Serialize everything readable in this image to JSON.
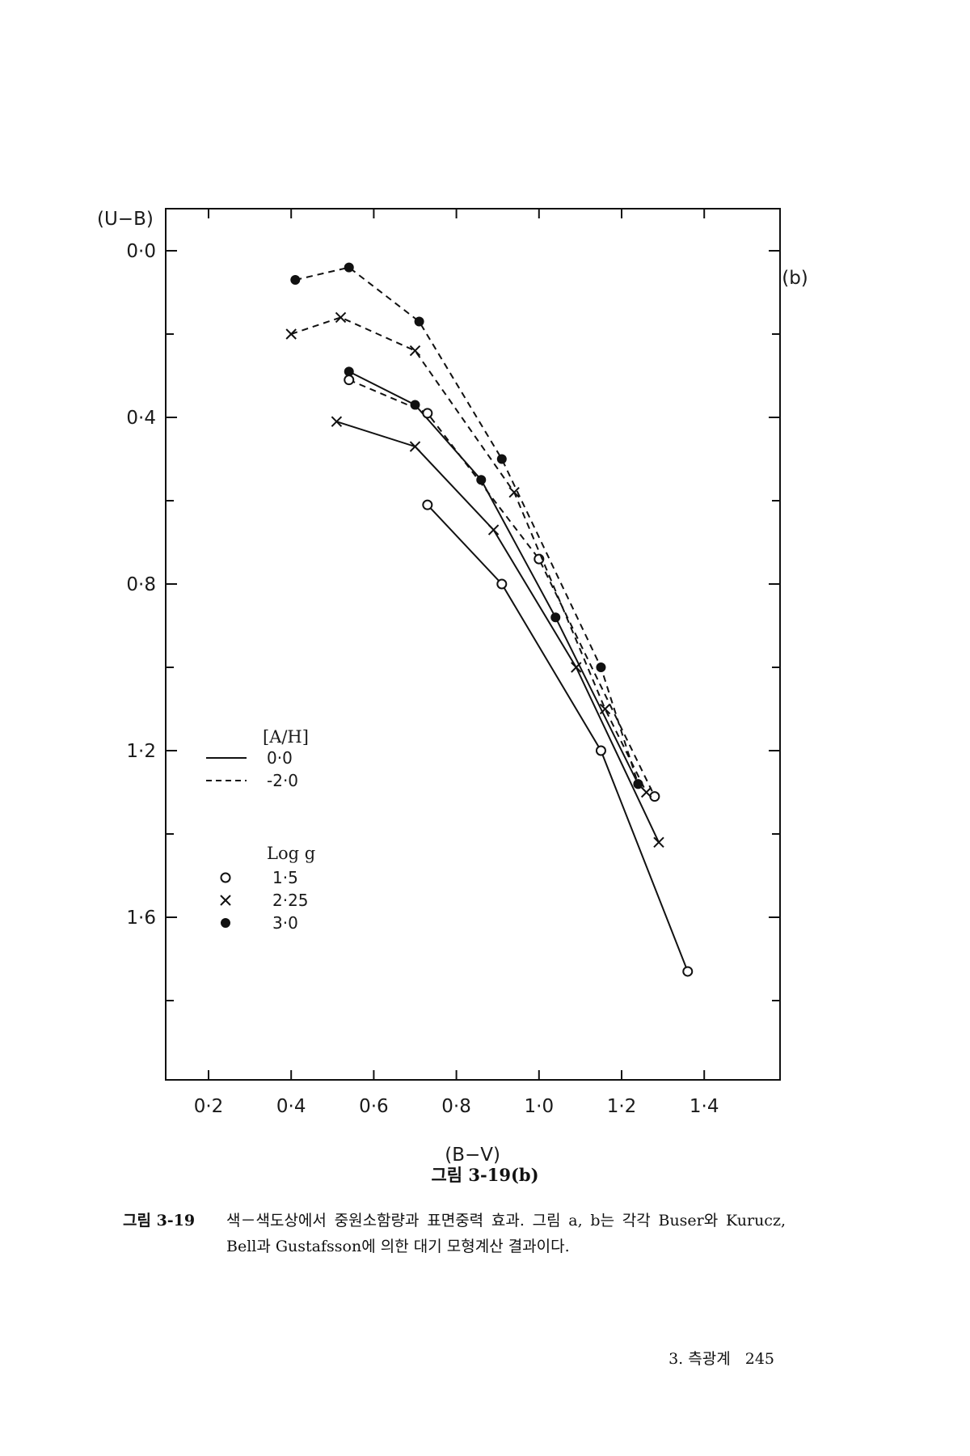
{
  "chart_data": {
    "type": "line",
    "panel_label": "(b)",
    "xlabel": "(B−V)",
    "ylabel": "(U−B)",
    "xlim": [
      0.1,
      1.6
    ],
    "ylim": [
      2.0,
      -0.1
    ],
    "y_inverted": true,
    "x_ticks": [
      "0·2",
      "0·4",
      "0·6",
      "0·8",
      "1·0",
      "1·2",
      "1·4"
    ],
    "x_tick_values": [
      0.2,
      0.4,
      0.6,
      0.8,
      1.0,
      1.2,
      1.4
    ],
    "y_ticks": [
      "0·0",
      "0·4",
      "0·8",
      "1·2",
      "1·6"
    ],
    "y_tick_values": [
      0.0,
      0.4,
      0.8,
      1.2,
      1.6
    ],
    "legend": {
      "ah_title": "[A/H]",
      "ah_entries": [
        {
          "label": "0·0",
          "style": "solid"
        },
        {
          "label": "-2·0",
          "style": "dashed"
        }
      ],
      "logg_title": "Log g",
      "logg_entries": [
        {
          "label": "1·5",
          "marker": "open-circle"
        },
        {
          "label": "2·25",
          "marker": "cross"
        },
        {
          "label": "3·0",
          "marker": "filled-circle"
        }
      ],
      "placement": "lower-left"
    },
    "series": [
      {
        "ah": "0·0",
        "logg": "1·5",
        "style": "solid",
        "marker": "open-circle",
        "x": [
          0.73,
          0.91,
          1.15,
          1.36
        ],
        "y": [
          0.61,
          0.8,
          1.2,
          1.73
        ]
      },
      {
        "ah": "0·0",
        "logg": "2·25",
        "style": "solid",
        "marker": "cross",
        "x": [
          0.51,
          0.7,
          0.89,
          1.09,
          1.29
        ],
        "y": [
          0.41,
          0.47,
          0.67,
          1.0,
          1.42
        ]
      },
      {
        "ah": "0·0",
        "logg": "3·0",
        "style": "solid",
        "marker": "filled-circle",
        "x": [
          0.54,
          0.7,
          0.86,
          1.04,
          1.24
        ],
        "y": [
          0.29,
          0.37,
          0.55,
          0.88,
          1.28
        ]
      },
      {
        "ah": "-2·0",
        "logg": "1·5",
        "style": "dashed",
        "marker": "open-circle",
        "x": [
          0.54,
          0.73,
          1.0,
          1.28
        ],
        "y": [
          0.31,
          0.39,
          0.74,
          1.31
        ]
      },
      {
        "ah": "-2·0",
        "logg": "2·25",
        "style": "dashed",
        "marker": "cross",
        "x": [
          0.4,
          0.52,
          0.7,
          0.94,
          1.16,
          1.26
        ],
        "y": [
          0.2,
          0.16,
          0.24,
          0.58,
          1.1,
          1.3
        ]
      },
      {
        "ah": "-2·0",
        "logg": "3·0",
        "style": "dashed",
        "marker": "filled-circle",
        "x": [
          0.41,
          0.54,
          0.71,
          0.91,
          1.15,
          1.24
        ],
        "y": [
          0.07,
          0.04,
          0.17,
          0.5,
          1.0,
          1.28
        ]
      }
    ]
  },
  "figure_label": "그림 3-19(b)",
  "caption": {
    "number": "그림 3-19",
    "text": "색－색도상에서 중원소함량과 표면중력 효과. 그림 a, b는 각각 Buser와 Kurucz, Bell과 Gustafsson에 의한 대기 모형계산 결과이다."
  },
  "footer": {
    "section": "3. 측광계",
    "page": "245"
  }
}
